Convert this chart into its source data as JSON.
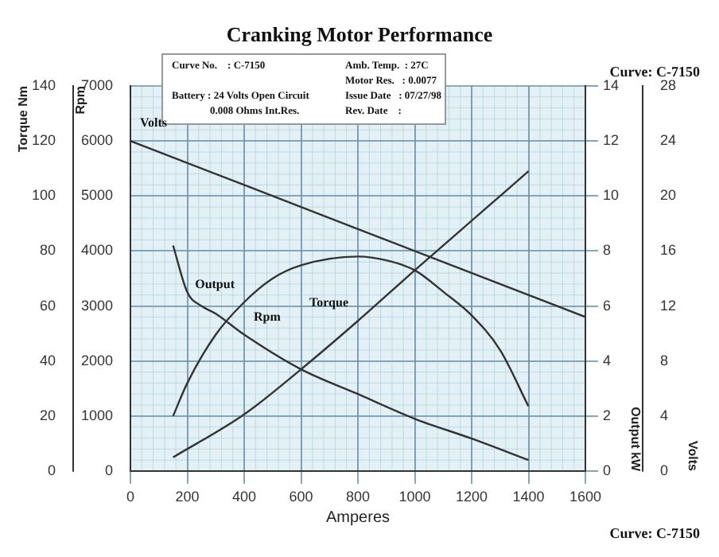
{
  "chart_data": [
    {
      "type": "line",
      "title": "Cranking Motor Performance",
      "xlabel": "Amperes",
      "ylabel": "Volts",
      "y2label": "Output kW",
      "xlim": [
        0,
        1600
      ],
      "xticks": [
        0,
        200,
        400,
        600,
        800,
        1000,
        1200,
        1400,
        1600
      ],
      "ylim": [
        0,
        28
      ],
      "yticks": [
        0,
        4,
        8,
        12,
        16,
        20,
        24,
        28
      ],
      "y2lim": [
        0,
        14
      ],
      "y2ticks": [
        0,
        2,
        4,
        6,
        8,
        10,
        12,
        14
      ],
      "grid": true,
      "marker": "none",
      "line_style": "solid",
      "annotations": [
        "Curve: C-7150",
        "Curve No.    : C-7150",
        "Amb. Temp.  : 27C",
        "Motor Res.   : 0.0077",
        "Battery : 24 Volts Open Circuit",
        "0.008 Ohms Int.Res.",
        "Issue Date   : 07/27/98",
        "Rev. Date    :",
        "Curve: C-7150"
      ],
      "series": [
        {
          "name": "Volts",
          "color": "#333333",
          "x": [
            0,
            800,
            1600
          ],
          "values": [
            24,
            17.6,
            11.2
          ]
        },
        {
          "name": "Output",
          "axis": "y2",
          "color": "#333333",
          "x": [
            150,
            200,
            300,
            400,
            500,
            600,
            800,
            900,
            1000,
            1100,
            1200,
            1300,
            1400
          ],
          "values": [
            2,
            3.2,
            4.96,
            6.14,
            7,
            7.48,
            7.8,
            7.66,
            7.3,
            6.52,
            5.66,
            4.4,
            2.35
          ]
        }
      ]
    },
    {
      "type": "line",
      "ylabel": "Torque Nm",
      "y2label": "Rpm",
      "tick_labels": "y",
      "xlim": [
        0,
        1600
      ],
      "xticks": [
        0,
        200,
        400,
        600,
        800,
        1000,
        1200,
        1400,
        1600
      ],
      "ylim": [
        0,
        140
      ],
      "yticks": [
        0,
        20,
        40,
        60,
        80,
        100,
        120,
        140
      ],
      "y2lim": [
        0,
        7000
      ],
      "y2ticks": [
        0,
        1000,
        2000,
        3000,
        4000,
        5000,
        6000,
        7000
      ],
      "marker": "none",
      "line_style": "solid",
      "series": [
        {
          "name": "Torque",
          "color": "#333333",
          "x": [
            150,
            400,
            600,
            800,
            1000,
            1200,
            1400
          ],
          "values": [
            5,
            20.6,
            37,
            54.6,
            73,
            91,
            109
          ]
        },
        {
          "name": "Rpm",
          "axis": "y2",
          "color": "#333333",
          "x": [
            150,
            200,
            250,
            300,
            400,
            600,
            800,
            1000,
            1200,
            1400
          ],
          "values": [
            4100,
            3250,
            3000,
            2860,
            2480,
            1850,
            1400,
            950,
            590,
            200
          ]
        }
      ]
    }
  ]
}
